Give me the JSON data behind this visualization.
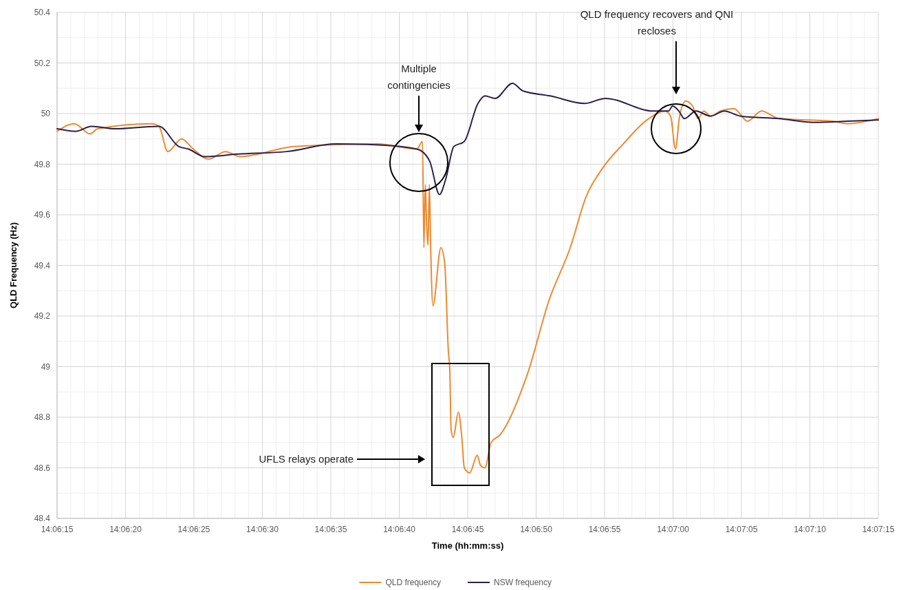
{
  "chart_data": {
    "type": "line",
    "xlabel": "Time (hh:mm:ss)",
    "ylabel": "QLD Frequency (Hz)",
    "xlim": [
      14.104167,
      14.120833
    ],
    "xticks": [
      {
        "value": 14.104167,
        "label": "14:06:15"
      },
      {
        "value": 14.105556,
        "label": "14:06:20"
      },
      {
        "value": 14.106944,
        "label": "14:06:25"
      },
      {
        "value": 14.108333,
        "label": "14:06:30"
      },
      {
        "value": 14.109722,
        "label": "14:06:35"
      },
      {
        "value": 14.111111,
        "label": "14:06:40"
      },
      {
        "value": 14.1125,
        "label": "14:06:45"
      },
      {
        "value": 14.113889,
        "label": "14:06:50"
      },
      {
        "value": 14.115278,
        "label": "14:06:55"
      },
      {
        "value": 14.116667,
        "label": "14:07:00"
      },
      {
        "value": 14.118056,
        "label": "14:07:05"
      },
      {
        "value": 14.119444,
        "label": "14:07:10"
      },
      {
        "value": 14.120833,
        "label": "14:07:15"
      }
    ],
    "ylim": [
      48.4,
      50.4
    ],
    "yticks": [
      48.4,
      48.6,
      48.8,
      49,
      49.2,
      49.4,
      49.6,
      49.8,
      50,
      50.2,
      50.4
    ],
    "grid": true,
    "legend": "bottom",
    "marker": "none",
    "line_style": "solid",
    "series": [
      {
        "name": "QLD frequency",
        "color": "#f0882c",
        "x": [
          14.104167,
          14.104517,
          14.104836,
          14.104989,
          14.106092,
          14.106233,
          14.106414,
          14.106694,
          14.106931,
          14.107239,
          14.107586,
          14.107881,
          14.108983,
          14.110672,
          14.111467,
          14.111583,
          14.111611,
          14.111639,
          14.111667,
          14.111694,
          14.111722,
          14.11175,
          14.111794,
          14.111956,
          14.112033,
          14.112108,
          14.112136,
          14.112164,
          14.112206,
          14.112311,
          14.112381,
          14.112431,
          14.112542,
          14.112694,
          14.112758,
          14.11285,
          14.112975,
          14.113156,
          14.113728,
          14.114147,
          14.114581,
          14.1149,
          14.115222,
          14.115656,
          14.116172,
          14.116506,
          14.116617,
          14.116717,
          14.1168,
          14.116925,
          14.117064,
          14.117175,
          14.117289,
          14.117428,
          14.117622,
          14.117903,
          14.118181,
          14.118461,
          14.118822,
          14.119897,
          14.120219,
          14.120833
        ],
        "values": [
          49.93,
          49.96,
          49.92,
          49.94,
          49.96,
          49.95,
          49.85,
          49.9,
          49.86,
          49.82,
          49.85,
          49.83,
          49.87,
          49.88,
          49.86,
          49.89,
          49.47,
          49.72,
          49.56,
          49.48,
          49.72,
          49.46,
          49.24,
          49.47,
          49.41,
          49.06,
          48.99,
          48.75,
          48.72,
          48.82,
          48.72,
          48.6,
          48.58,
          48.65,
          48.61,
          48.6,
          48.7,
          48.73,
          48.98,
          49.26,
          49.47,
          49.67,
          49.78,
          49.88,
          49.98,
          50.01,
          49.99,
          49.86,
          49.99,
          50.05,
          50.03,
          49.98,
          50.01,
          49.99,
          50.01,
          50.02,
          49.97,
          50.01,
          49.98,
          49.97,
          49.96,
          49.98
        ]
      },
      {
        "name": "NSW frequency",
        "color": "#2b1f4e",
        "x": [
          14.104167,
          14.104544,
          14.104864,
          14.105339,
          14.106233,
          14.106636,
          14.106833,
          14.107161,
          14.107839,
          14.108828,
          14.109833,
          14.110825,
          14.111467,
          14.111578,
          14.111733,
          14.111928,
          14.112053,
          14.112219,
          14.112431,
          14.112708,
          14.11285,
          14.113058,
          14.113408,
          14.113617,
          14.114175,
          14.114872,
          14.115292,
          14.116269,
          14.116575,
          14.116658,
          14.116786,
          14.116897,
          14.117133,
          14.117428,
          14.117706,
          14.118042,
          14.118822,
          14.119522,
          14.120219,
          14.120833
        ],
        "values": [
          49.94,
          49.93,
          49.95,
          49.94,
          49.95,
          49.87,
          49.86,
          49.83,
          49.84,
          49.85,
          49.88,
          49.875,
          49.86,
          49.85,
          49.81,
          49.68,
          49.74,
          49.87,
          49.89,
          50.04,
          50.07,
          50.06,
          50.12,
          50.09,
          50.07,
          50.04,
          50.06,
          50.01,
          50.01,
          50.03,
          50.01,
          49.98,
          50.01,
          49.99,
          50.01,
          49.99,
          49.98,
          49.965,
          49.97,
          49.975
        ]
      }
    ],
    "annotations": [
      "Multiple contingencies",
      "QLD frequency recovers and QNI recloses",
      "UFLS relays operate"
    ]
  }
}
